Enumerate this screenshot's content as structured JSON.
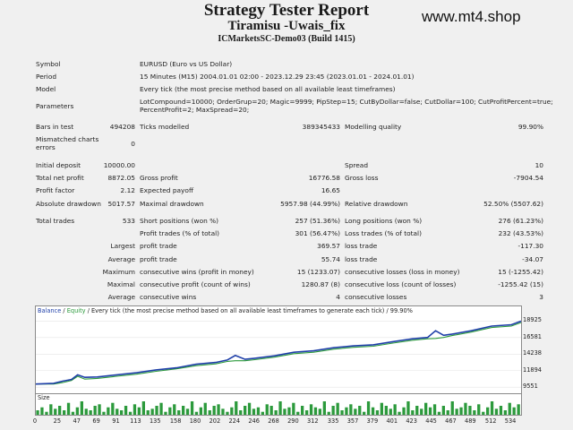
{
  "header": {
    "title": "Strategy Tester Report",
    "subtitle": "Tiramisu -Uwais_fix",
    "server": "ICMarketsSC-Demo03 (Build 1415)",
    "watermark": "www.mt4.shop"
  },
  "settings": {
    "symbol_label": "Symbol",
    "symbol": "EURUSD (Euro vs US Dollar)",
    "period_label": "Period",
    "period": "15 Minutes (M15) 2004.01.01 02:00 - 2023.12.29 23:45 (2023.01.01 - 2024.01.01)",
    "model_label": "Model",
    "model": "Every tick (the most precise method based on all available least timeframes)",
    "parameters_label": "Parameters",
    "parameters_line1": "LotCompound=10000; OrderGrup=20; Magic=9999; PipStep=15; CutByDollar=false; CutDollar=100; CutProfitPercent=true;",
    "parameters_line2": "PercentProfit=2; MaxSpread=20;"
  },
  "stats": {
    "bars_label": "Bars in test",
    "bars": "494208",
    "ticks_label": "Ticks modelled",
    "ticks": "389345433",
    "quality_label": "Modelling quality",
    "quality": "99.90%",
    "mismatch_label_1": "Mismatched charts",
    "mismatch_label_2": "errors",
    "mismatch": "0",
    "initial_label": "Initial deposit",
    "initial": "10000.00",
    "spread_label": "Spread",
    "spread": "10",
    "net_label": "Total net profit",
    "net": "8872.05",
    "gross_profit_label": "Gross profit",
    "gross_profit": "16776.58",
    "gross_loss_label": "Gross loss",
    "gross_loss": "-7904.54",
    "pf_label": "Profit factor",
    "pf": "2.12",
    "payoff_label": "Expected payoff",
    "payoff": "16.65",
    "abs_dd_label": "Absolute drawdown",
    "abs_dd": "5017.57",
    "max_dd_label": "Maximal drawdown",
    "max_dd": "5957.98 (44.99%)",
    "rel_dd_label": "Relative drawdown",
    "rel_dd": "52.50% (5507.62)",
    "trades_label": "Total trades",
    "trades": "533",
    "short_label": "Short positions (won %)",
    "short": "257 (51.36%)",
    "long_label": "Long positions (won %)",
    "long": "276 (61.23%)",
    "pt_label": "Profit trades (% of total)",
    "pt": "301 (56.47%)",
    "lt_label": "Loss trades (% of total)",
    "lt": "232 (43.53%)",
    "largest_label": "Largest",
    "largest_profit_label": "profit trade",
    "largest_profit": "369.57",
    "largest_loss_label": "loss trade",
    "largest_loss": "-117.30",
    "average_label": "Average",
    "average_profit_label": "profit trade",
    "average_profit": "55.74",
    "average_loss_label": "loss trade",
    "average_loss": "-34.07",
    "maximum_label": "Maximum",
    "max_wins_label": "consecutive wins (profit in money)",
    "max_wins": "15 (1233.07)",
    "max_losses_label": "consecutive losses (loss in money)",
    "max_losses": "15 (-1255.42)",
    "maximal_label": "Maximal",
    "maximal_profit_label": "consecutive profit (count of wins)",
    "maximal_profit": "1280.87 (8)",
    "maximal_loss_label": "consecutive loss (count of losses)",
    "maximal_loss": "-1255.42 (15)",
    "avg_label": "Average",
    "avg_wins_label": "consecutive wins",
    "avg_wins": "4",
    "avg_losses_label": "consecutive losses",
    "avg_losses": "3"
  },
  "chart_hdr": {
    "balance": "Balance",
    "sep": " / ",
    "equity": "Equity",
    "rest": " / Every tick (the most precise method based on all available least timeframes to generate each tick) / 99.90%",
    "vol_label": "Size"
  },
  "chart_data": {
    "type": "line",
    "yticks": [
      9551,
      11894,
      14238,
      16581,
      18925
    ],
    "xticks": [
      0,
      25,
      47,
      69,
      91,
      113,
      135,
      158,
      180,
      202,
      224,
      246,
      268,
      290,
      312,
      335,
      357,
      379,
      401,
      423,
      445,
      467,
      489,
      512,
      534
    ],
    "ylim": [
      9200,
      19600
    ],
    "xlim": [
      0,
      545
    ],
    "series": [
      {
        "values": [
          [
            0,
            10000
          ],
          [
            20,
            10100
          ],
          [
            30,
            10400
          ],
          [
            40,
            10650
          ],
          [
            47,
            11300
          ],
          [
            55,
            10950
          ],
          [
            69,
            11000
          ],
          [
            91,
            11300
          ],
          [
            113,
            11600
          ],
          [
            135,
            12000
          ],
          [
            158,
            12300
          ],
          [
            180,
            12800
          ],
          [
            202,
            13050
          ],
          [
            215,
            13400
          ],
          [
            224,
            14050
          ],
          [
            235,
            13500
          ],
          [
            246,
            13650
          ],
          [
            268,
            14000
          ],
          [
            290,
            14500
          ],
          [
            312,
            14700
          ],
          [
            335,
            15150
          ],
          [
            357,
            15400
          ],
          [
            379,
            15550
          ],
          [
            401,
            16000
          ],
          [
            423,
            16400
          ],
          [
            440,
            16600
          ],
          [
            449,
            17550
          ],
          [
            458,
            16900
          ],
          [
            467,
            17050
          ],
          [
            489,
            17550
          ],
          [
            512,
            18200
          ],
          [
            534,
            18400
          ],
          [
            545,
            18900
          ]
        ]
      },
      {
        "values": [
          [
            0,
            10000
          ],
          [
            20,
            10000
          ],
          [
            30,
            10200
          ],
          [
            40,
            10500
          ],
          [
            47,
            11100
          ],
          [
            55,
            10700
          ],
          [
            69,
            10800
          ],
          [
            91,
            11100
          ],
          [
            113,
            11400
          ],
          [
            135,
            11800
          ],
          [
            158,
            12150
          ],
          [
            180,
            12600
          ],
          [
            202,
            12850
          ],
          [
            215,
            13200
          ],
          [
            224,
            13300
          ],
          [
            235,
            13300
          ],
          [
            246,
            13450
          ],
          [
            268,
            13800
          ],
          [
            290,
            14300
          ],
          [
            312,
            14500
          ],
          [
            335,
            14950
          ],
          [
            357,
            15200
          ],
          [
            379,
            15350
          ],
          [
            401,
            15800
          ],
          [
            423,
            16200
          ],
          [
            440,
            16400
          ],
          [
            449,
            16450
          ],
          [
            458,
            16600
          ],
          [
            467,
            16850
          ],
          [
            489,
            17350
          ],
          [
            512,
            18000
          ],
          [
            534,
            18200
          ],
          [
            545,
            18700
          ]
        ]
      }
    ],
    "volume": [
      3,
      5,
      2,
      7,
      4,
      6,
      3,
      8,
      2,
      5,
      9,
      4,
      3,
      6,
      7,
      2,
      5,
      8,
      4,
      3,
      6,
      2,
      7,
      5,
      9,
      3,
      4,
      6,
      8,
      2,
      5,
      7,
      3,
      6,
      4,
      9,
      2,
      5,
      8,
      3,
      6,
      7,
      4,
      2,
      5,
      9,
      3,
      6,
      8,
      4,
      5,
      2,
      7,
      6,
      3,
      9,
      4,
      5,
      8,
      2,
      6,
      3,
      7,
      5,
      4,
      9,
      2,
      6,
      8,
      3,
      5,
      7,
      4,
      6,
      2,
      9,
      5,
      3,
      8,
      6,
      4,
      7,
      2,
      5,
      9,
      3,
      6,
      4,
      8,
      5,
      7,
      2,
      6,
      3,
      9,
      4,
      5,
      8,
      6,
      3,
      7,
      2,
      5,
      9,
      4,
      6,
      3,
      8,
      5,
      7
    ]
  },
  "colors": {
    "balance": "#1f3fa8",
    "equity": "#2c9a3c",
    "volume": "#2c9a3c"
  }
}
